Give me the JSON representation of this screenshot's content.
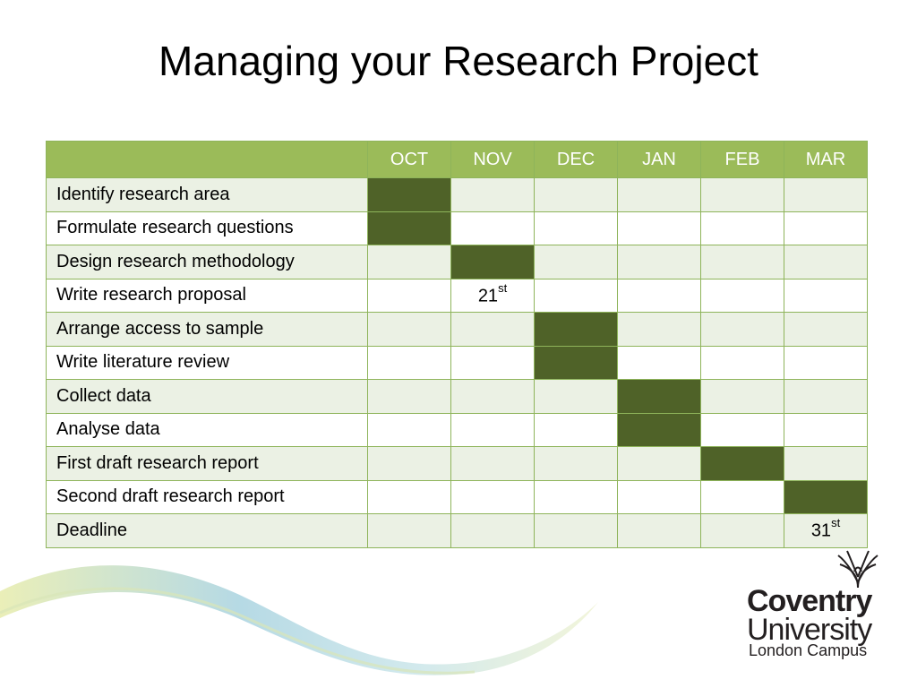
{
  "title": "Managing your Research Project",
  "months": [
    "OCT",
    "NOV",
    "DEC",
    "JAN",
    "FEB",
    "MAR"
  ],
  "tasks": [
    {
      "label": "Identify research area",
      "filled": [
        "OCT"
      ],
      "marks": {}
    },
    {
      "label": "Formulate research questions",
      "filled": [
        "OCT"
      ],
      "marks": {}
    },
    {
      "label": "Design research methodology",
      "filled": [
        "NOV"
      ],
      "marks": {}
    },
    {
      "label": "Write research proposal",
      "filled": [],
      "marks": {
        "NOV": {
          "day": "21",
          "suffix": "st"
        }
      }
    },
    {
      "label": "Arrange access to sample",
      "filled": [
        "DEC"
      ],
      "marks": {}
    },
    {
      "label": "Write literature review",
      "filled": [
        "DEC"
      ],
      "marks": {}
    },
    {
      "label": "Collect data",
      "filled": [
        "JAN"
      ],
      "marks": {}
    },
    {
      "label": "Analyse data",
      "filled": [
        "JAN"
      ],
      "marks": {}
    },
    {
      "label": "First draft research report",
      "filled": [
        "FEB"
      ],
      "marks": {}
    },
    {
      "label": "Second draft research report",
      "filled": [
        "MAR"
      ],
      "marks": {}
    },
    {
      "label": "Deadline",
      "filled": [],
      "marks": {
        "MAR": {
          "day": "31",
          "suffix": "st"
        }
      }
    }
  ],
  "colors": {
    "header": "#9bbb59",
    "filled": "#4f6228",
    "alt_row": "#ebf1e4",
    "border": "#8eb45a"
  },
  "logo": {
    "line1": "Coventry",
    "line2": "University",
    "subtitle": "London Campus",
    "crest_icon": "phoenix-crest-icon"
  }
}
